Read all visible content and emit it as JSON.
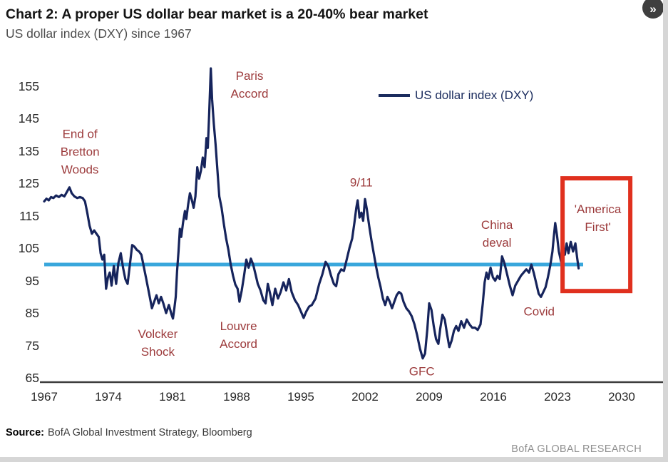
{
  "header": {
    "title": "Chart 2: A proper US dollar bear market is a 20-40% bear market",
    "subtitle": "US dollar index (DXY) since 1967"
  },
  "controls": {
    "expand_icon": "»"
  },
  "legend": {
    "label": "US dollar index (DXY)"
  },
  "footer": {
    "source_label": "Source:",
    "source_text": "BofA Global Investment Strategy, Bloomberg",
    "brand": "BofA GLOBAL RESEARCH"
  },
  "chart_data": {
    "type": "line",
    "title": "Chart 2: A proper US dollar bear market is a 20-40% bear market",
    "subtitle": "US dollar index (DXY) since 1967",
    "xlabel": "",
    "ylabel": "",
    "xlim": [
      1967,
      2031
    ],
    "ylim": [
      65,
      162
    ],
    "grid": false,
    "legend_position": "top-center",
    "x_ticks": [
      1967,
      1974,
      1981,
      1988,
      1995,
      2002,
      2009,
      2016,
      2023,
      2030
    ],
    "y_ticks": [
      65,
      75,
      85,
      95,
      105,
      115,
      125,
      135,
      145,
      155
    ],
    "reference_line": {
      "value": 100,
      "color": "#39a7dc",
      "x_start": 1967,
      "x_end": 2025.8
    },
    "highlight_box": {
      "x0": 2023.55,
      "x1": 2030.94,
      "y0": 91.8,
      "y1": 126.6,
      "color": "#e0301e"
    },
    "annotations": [
      {
        "name": "end-of-bretton-woods",
        "lines": [
          "End of",
          "Bretton",
          "Woods"
        ],
        "x": 1970.9,
        "y": 134.8
      },
      {
        "name": "paris-accord",
        "lines": [
          "Paris",
          "Accord"
        ],
        "x": 1989.4,
        "y": 155.5
      },
      {
        "name": "volcker-shock",
        "lines": [
          "Volcker",
          "Shock"
        ],
        "x": 1979.4,
        "y": 75.8
      },
      {
        "name": "louvre-accord",
        "lines": [
          "Louvre",
          "Accord"
        ],
        "x": 1988.2,
        "y": 78.2
      },
      {
        "name": "nine-eleven",
        "lines": [
          "9/11"
        ],
        "x": 2001.6,
        "y": 125.3
      },
      {
        "name": "gfc",
        "lines": [
          "GFC"
        ],
        "x": 2008.2,
        "y": 67.0
      },
      {
        "name": "china-deval",
        "lines": [
          "China",
          "deval"
        ],
        "x": 2016.4,
        "y": 109.5
      },
      {
        "name": "covid",
        "lines": [
          "Covid"
        ],
        "x": 2021.0,
        "y": 85.5
      },
      {
        "name": "america-first",
        "lines": [
          "'America",
          "First'"
        ],
        "x": 2027.4,
        "y": 114.3
      }
    ],
    "series": [
      {
        "name": "US dollar index (DXY)",
        "color": "#16245c",
        "points": [
          [
            1967.0,
            119.5
          ],
          [
            1967.25,
            120.3
          ],
          [
            1967.5,
            119.8
          ],
          [
            1967.75,
            120.8
          ],
          [
            1968.0,
            120.5
          ],
          [
            1968.3,
            121.3
          ],
          [
            1968.6,
            120.8
          ],
          [
            1968.9,
            121.5
          ],
          [
            1969.2,
            121.0
          ],
          [
            1969.5,
            122.5
          ],
          [
            1969.75,
            123.8
          ],
          [
            1970.0,
            122.0
          ],
          [
            1970.3,
            121.0
          ],
          [
            1970.6,
            120.5
          ],
          [
            1970.9,
            120.8
          ],
          [
            1971.2,
            120.5
          ],
          [
            1971.45,
            119.5
          ],
          [
            1971.7,
            116.0
          ],
          [
            1971.95,
            112.0
          ],
          [
            1972.2,
            109.5
          ],
          [
            1972.45,
            110.5
          ],
          [
            1972.7,
            109.5
          ],
          [
            1972.95,
            108.5
          ],
          [
            1973.15,
            103.5
          ],
          [
            1973.35,
            101.5
          ],
          [
            1973.55,
            103.0
          ],
          [
            1973.75,
            92.5
          ],
          [
            1973.95,
            96.0
          ],
          [
            1974.15,
            97.5
          ],
          [
            1974.35,
            93.5
          ],
          [
            1974.6,
            99.5
          ],
          [
            1974.85,
            94.0
          ],
          [
            1975.1,
            100.5
          ],
          [
            1975.35,
            103.5
          ],
          [
            1975.6,
            99.0
          ],
          [
            1975.85,
            95.5
          ],
          [
            1976.1,
            94.0
          ],
          [
            1976.35,
            100.0
          ],
          [
            1976.6,
            106.0
          ],
          [
            1976.85,
            105.5
          ],
          [
            1977.1,
            104.5
          ],
          [
            1977.35,
            104.0
          ],
          [
            1977.6,
            103.0
          ],
          [
            1977.85,
            99.5
          ],
          [
            1978.1,
            96.0
          ],
          [
            1978.45,
            91.0
          ],
          [
            1978.75,
            86.5
          ],
          [
            1979.0,
            88.5
          ],
          [
            1979.25,
            90.5
          ],
          [
            1979.5,
            88.0
          ],
          [
            1979.75,
            90.0
          ],
          [
            1980.0,
            88.0
          ],
          [
            1980.3,
            85.0
          ],
          [
            1980.6,
            87.5
          ],
          [
            1980.9,
            84.5
          ],
          [
            1981.05,
            83.3
          ],
          [
            1981.2,
            86.5
          ],
          [
            1981.35,
            90.0
          ],
          [
            1981.5,
            98.0
          ],
          [
            1981.65,
            104.0
          ],
          [
            1981.8,
            111.0
          ],
          [
            1981.95,
            108.5
          ],
          [
            1982.15,
            113.0
          ],
          [
            1982.35,
            116.5
          ],
          [
            1982.5,
            114.0
          ],
          [
            1982.7,
            118.5
          ],
          [
            1982.9,
            122.0
          ],
          [
            1983.1,
            120.0
          ],
          [
            1983.3,
            117.5
          ],
          [
            1983.5,
            121.0
          ],
          [
            1983.7,
            130.0
          ],
          [
            1983.9,
            126.5
          ],
          [
            1984.1,
            129.0
          ],
          [
            1984.3,
            133.0
          ],
          [
            1984.5,
            130.0
          ],
          [
            1984.7,
            139.0
          ],
          [
            1984.85,
            136.0
          ],
          [
            1985.0,
            146.5
          ],
          [
            1985.18,
            160.5
          ],
          [
            1985.32,
            151.0
          ],
          [
            1985.5,
            143.5
          ],
          [
            1985.7,
            137.0
          ],
          [
            1985.9,
            129.0
          ],
          [
            1986.1,
            121.0
          ],
          [
            1986.35,
            117.5
          ],
          [
            1986.6,
            112.5
          ],
          [
            1986.85,
            108.0
          ],
          [
            1987.1,
            104.5
          ],
          [
            1987.35,
            100.0
          ],
          [
            1987.6,
            96.5
          ],
          [
            1987.85,
            93.8
          ],
          [
            1988.1,
            92.5
          ],
          [
            1988.3,
            88.5
          ],
          [
            1988.55,
            92.0
          ],
          [
            1988.8,
            96.5
          ],
          [
            1989.05,
            101.5
          ],
          [
            1989.3,
            99.0
          ],
          [
            1989.55,
            101.8
          ],
          [
            1989.8,
            100.0
          ],
          [
            1990.05,
            97.0
          ],
          [
            1990.3,
            94.0
          ],
          [
            1990.6,
            92.0
          ],
          [
            1990.9,
            89.0
          ],
          [
            1991.15,
            88.0
          ],
          [
            1991.4,
            94.0
          ],
          [
            1991.65,
            91.0
          ],
          [
            1991.9,
            87.5
          ],
          [
            1992.2,
            92.5
          ],
          [
            1992.5,
            89.5
          ],
          [
            1992.8,
            91.5
          ],
          [
            1993.1,
            94.5
          ],
          [
            1993.4,
            92.0
          ],
          [
            1993.7,
            95.5
          ],
          [
            1994.0,
            91.5
          ],
          [
            1994.35,
            89.0
          ],
          [
            1994.7,
            87.5
          ],
          [
            1995.0,
            85.5
          ],
          [
            1995.3,
            83.5
          ],
          [
            1995.6,
            85.5
          ],
          [
            1995.9,
            87.0
          ],
          [
            1996.2,
            87.5
          ],
          [
            1996.6,
            89.5
          ],
          [
            1997.0,
            94.0
          ],
          [
            1997.35,
            97.0
          ],
          [
            1997.7,
            100.8
          ],
          [
            1998.0,
            99.5
          ],
          [
            1998.3,
            96.5
          ],
          [
            1998.6,
            94.0
          ],
          [
            1998.85,
            93.3
          ],
          [
            1999.1,
            97.0
          ],
          [
            1999.4,
            98.5
          ],
          [
            1999.7,
            98.0
          ],
          [
            2000.0,
            101.5
          ],
          [
            2000.3,
            105.0
          ],
          [
            2000.6,
            108.0
          ],
          [
            2000.85,
            113.0
          ],
          [
            2001.05,
            117.5
          ],
          [
            2001.2,
            119.8
          ],
          [
            2001.4,
            114.5
          ],
          [
            2001.6,
            116.0
          ],
          [
            2001.8,
            113.5
          ],
          [
            2002.0,
            120.2
          ],
          [
            2002.2,
            117.0
          ],
          [
            2002.45,
            112.0
          ],
          [
            2002.7,
            107.5
          ],
          [
            2002.95,
            103.5
          ],
          [
            2003.2,
            99.5
          ],
          [
            2003.45,
            96.0
          ],
          [
            2003.7,
            93.0
          ],
          [
            2003.95,
            89.5
          ],
          [
            2004.2,
            87.5
          ],
          [
            2004.45,
            90.0
          ],
          [
            2004.7,
            88.5
          ],
          [
            2004.95,
            86.5
          ],
          [
            2005.2,
            88.5
          ],
          [
            2005.45,
            90.5
          ],
          [
            2005.7,
            91.5
          ],
          [
            2005.95,
            91.0
          ],
          [
            2006.2,
            88.5
          ],
          [
            2006.5,
            86.5
          ],
          [
            2006.8,
            85.5
          ],
          [
            2007.1,
            84.0
          ],
          [
            2007.4,
            81.5
          ],
          [
            2007.7,
            78.0
          ],
          [
            2008.0,
            74.0
          ],
          [
            2008.3,
            71.0
          ],
          [
            2008.55,
            72.5
          ],
          [
            2008.8,
            80.0
          ],
          [
            2009.0,
            88.0
          ],
          [
            2009.25,
            86.0
          ],
          [
            2009.5,
            81.0
          ],
          [
            2009.75,
            77.0
          ],
          [
            2010.0,
            75.5
          ],
          [
            2010.2,
            80.0
          ],
          [
            2010.45,
            84.5
          ],
          [
            2010.7,
            83.0
          ],
          [
            2010.95,
            78.5
          ],
          [
            2011.2,
            74.5
          ],
          [
            2011.45,
            76.5
          ],
          [
            2011.7,
            79.5
          ],
          [
            2011.95,
            81.0
          ],
          [
            2012.2,
            79.5
          ],
          [
            2012.5,
            82.5
          ],
          [
            2012.8,
            80.5
          ],
          [
            2013.1,
            83.0
          ],
          [
            2013.4,
            81.5
          ],
          [
            2013.7,
            80.5
          ],
          [
            2014.0,
            80.5
          ],
          [
            2014.3,
            79.8
          ],
          [
            2014.6,
            81.5
          ],
          [
            2014.85,
            88.0
          ],
          [
            2015.05,
            94.5
          ],
          [
            2015.25,
            97.5
          ],
          [
            2015.45,
            95.5
          ],
          [
            2015.7,
            99.0
          ],
          [
            2015.95,
            96.0
          ],
          [
            2016.2,
            95.0
          ],
          [
            2016.45,
            96.5
          ],
          [
            2016.7,
            95.5
          ],
          [
            2016.95,
            102.5
          ],
          [
            2017.2,
            100.5
          ],
          [
            2017.5,
            97.0
          ],
          [
            2017.8,
            93.5
          ],
          [
            2018.1,
            90.5
          ],
          [
            2018.4,
            93.5
          ],
          [
            2018.7,
            95.0
          ],
          [
            2019.0,
            96.5
          ],
          [
            2019.3,
            97.5
          ],
          [
            2019.6,
            98.5
          ],
          [
            2019.9,
            97.5
          ],
          [
            2020.15,
            100.0
          ],
          [
            2020.4,
            97.5
          ],
          [
            2020.7,
            94.0
          ],
          [
            2020.95,
            91.0
          ],
          [
            2021.2,
            90.0
          ],
          [
            2021.45,
            91.5
          ],
          [
            2021.7,
            93.0
          ],
          [
            2021.95,
            96.0
          ],
          [
            2022.2,
            99.5
          ],
          [
            2022.45,
            104.0
          ],
          [
            2022.6,
            108.5
          ],
          [
            2022.75,
            112.8
          ],
          [
            2022.95,
            109.0
          ],
          [
            2023.15,
            104.0
          ],
          [
            2023.4,
            100.8
          ],
          [
            2023.6,
            106.0
          ],
          [
            2023.8,
            103.0
          ],
          [
            2024.0,
            106.5
          ],
          [
            2024.2,
            103.5
          ],
          [
            2024.45,
            107.0
          ],
          [
            2024.7,
            104.0
          ],
          [
            2024.95,
            106.5
          ],
          [
            2025.15,
            102.0
          ],
          [
            2025.3,
            98.8
          ]
        ]
      }
    ]
  }
}
